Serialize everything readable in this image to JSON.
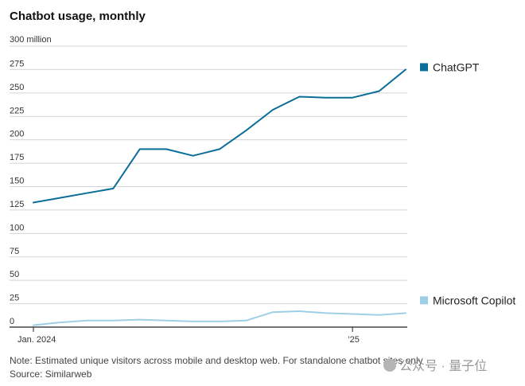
{
  "chart_data": {
    "type": "line",
    "title": "Chatbot usage, monthly",
    "unit_label": "300 million",
    "ylim": [
      0,
      300
    ],
    "yticks": [
      0,
      25,
      50,
      75,
      100,
      125,
      150,
      175,
      200,
      225,
      250,
      275,
      300
    ],
    "ytick_labels": [
      "0",
      "25",
      "50",
      "75",
      "100",
      "125",
      "150",
      "175",
      "200",
      "225",
      "250",
      "275",
      ""
    ],
    "x_index": [
      0,
      1,
      2,
      3,
      4,
      5,
      6,
      7,
      8,
      9,
      10,
      11,
      12,
      13,
      14
    ],
    "xtick_labels": [
      {
        "index": 0,
        "label": "Jan. 2024"
      },
      {
        "index": 12,
        "label": "’25"
      }
    ],
    "series": [
      {
        "name": "ChatGPT",
        "color": "#0b6e99",
        "values": [
          133,
          138,
          143,
          148,
          190,
          190,
          183,
          190,
          210,
          232,
          246,
          245,
          245,
          252,
          275
        ]
      },
      {
        "name": "Microsoft Copilot",
        "color": "#9ecfe6",
        "values": [
          2,
          5,
          7,
          7,
          8,
          7,
          6,
          6,
          7,
          16,
          17,
          15,
          14,
          13,
          15
        ]
      }
    ],
    "note": "Note: Estimated unique visitors across mobile and desktop web. For standalone chatbot sites only",
    "source": "Source: Similarweb"
  },
  "watermark": "公众号 · 量子位"
}
